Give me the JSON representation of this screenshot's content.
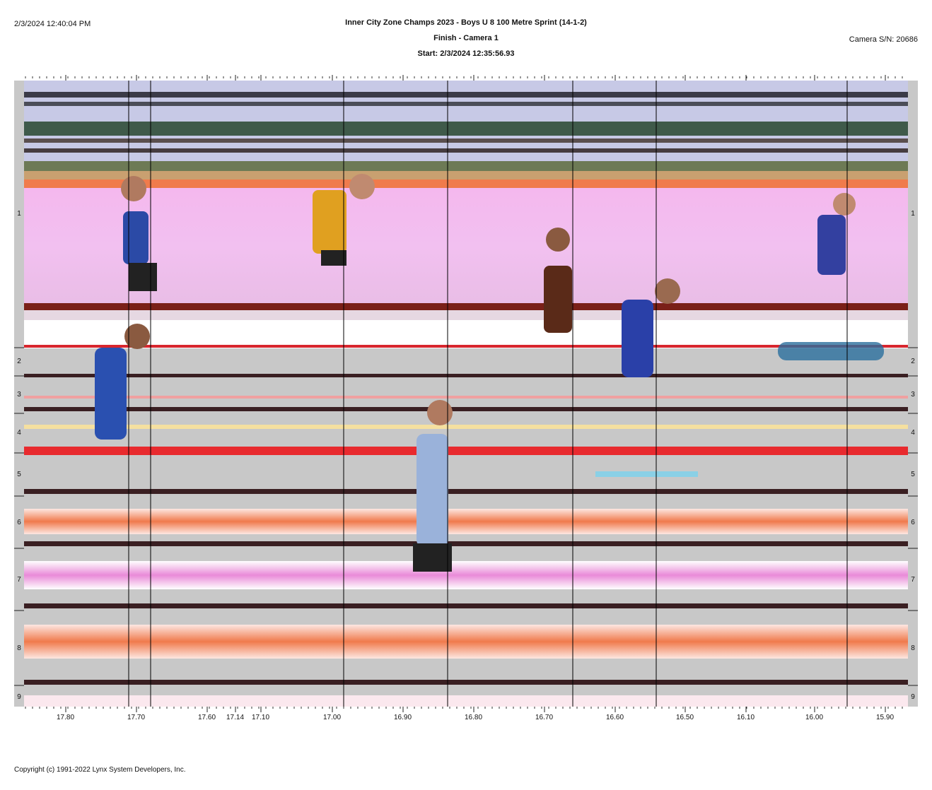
{
  "header": {
    "timestamp": "2/3/2024 12:40:04 PM",
    "title": "Inner City Zone Champs 2023 - Boys U 8 100 Metre Sprint (14-1-2)",
    "subtitle": "Finish - Camera 1",
    "start": "Start: 2/3/2024 12:35:56.93",
    "camera_sn": "Camera S/N: 20686"
  },
  "lanes": [
    "1",
    "2",
    "3",
    "4",
    "5",
    "6",
    "7",
    "8",
    "9"
  ],
  "time_axis": [
    {
      "label": "17.80"
    },
    {
      "label": "17.70"
    },
    {
      "label": "17.60"
    },
    {
      "label": "17.14"
    },
    {
      "label": "17.10"
    },
    {
      "label": "17.00"
    },
    {
      "label": "16.90"
    },
    {
      "label": "16.80"
    },
    {
      "label": "16.70"
    },
    {
      "label": "16.60"
    },
    {
      "label": "16.50"
    },
    {
      "label": "16.10"
    },
    {
      "label": "16.00"
    },
    {
      "label": "15.90"
    }
  ],
  "colors": {
    "track_red": "#d8262e",
    "lane_line": "#3a1f22",
    "sky_band": "#c7c9e6",
    "crowd_band": "#e8b8ee",
    "hurdle_glow": "#f06060"
  },
  "footer": {
    "copyright": "Copyright (c) 1991-2022 Lynx System Developers, Inc."
  }
}
